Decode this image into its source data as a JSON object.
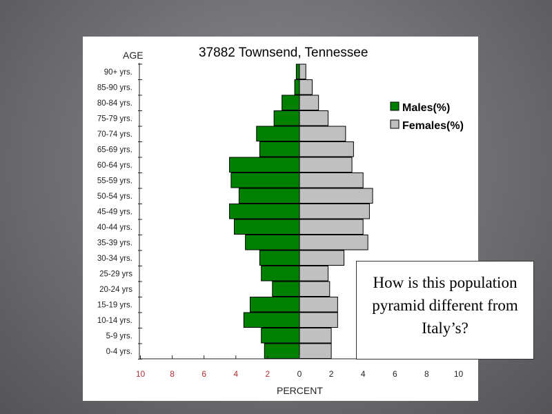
{
  "slide": {
    "question": "How is this population pyramid different from Italy’s?"
  },
  "chart_data": {
    "type": "bar",
    "title": "37882 Townsend, Tennessee",
    "ylabel": "AGE",
    "xlabel": "PERCENT",
    "categories": [
      "90+ yrs.",
      "85-90 yrs.",
      "80-84 yrs.",
      "75-79 yrs.",
      "70-74 yrs.",
      "65-69 yrs.",
      "60-64 yrs.",
      "55-59 yrs.",
      "50-54 yrs.",
      "45-49 yrs.",
      "40-44 yrs.",
      "35-39 yrs.",
      "30-34 yrs.",
      "25-29 yrs",
      "20-24 yrs",
      "15-19 yrs.",
      "10-14 yrs.",
      "5-9 yrs.",
      "0-4 yrs."
    ],
    "series": [
      {
        "name": "Males(%)",
        "color": "#008000",
        "values": [
          0.2,
          0.3,
          1.1,
          1.6,
          2.7,
          2.5,
          4.4,
          4.3,
          3.8,
          4.4,
          4.1,
          3.4,
          2.5,
          2.4,
          1.7,
          3.1,
          3.5,
          2.4,
          2.2
        ]
      },
      {
        "name": "Females(%)",
        "color": "#c0c0c0",
        "values": [
          0.4,
          0.8,
          1.2,
          1.8,
          2.9,
          3.4,
          3.3,
          4.0,
          4.6,
          4.4,
          4.0,
          4.3,
          2.8,
          1.8,
          1.9,
          2.4,
          2.4,
          2.0,
          2.0
        ]
      }
    ],
    "xticks_left": [
      "10",
      "8",
      "6",
      "4",
      "2"
    ],
    "xticks_right": [
      "0",
      "2",
      "4",
      "6",
      "8",
      "10"
    ],
    "xlim": [
      -10,
      10
    ],
    "legend_position": "right",
    "grid": false,
    "colors": {
      "male": "#008000",
      "female": "#c0c0c0",
      "left_ticks": "#b03030",
      "right_ticks": "#222222"
    }
  }
}
